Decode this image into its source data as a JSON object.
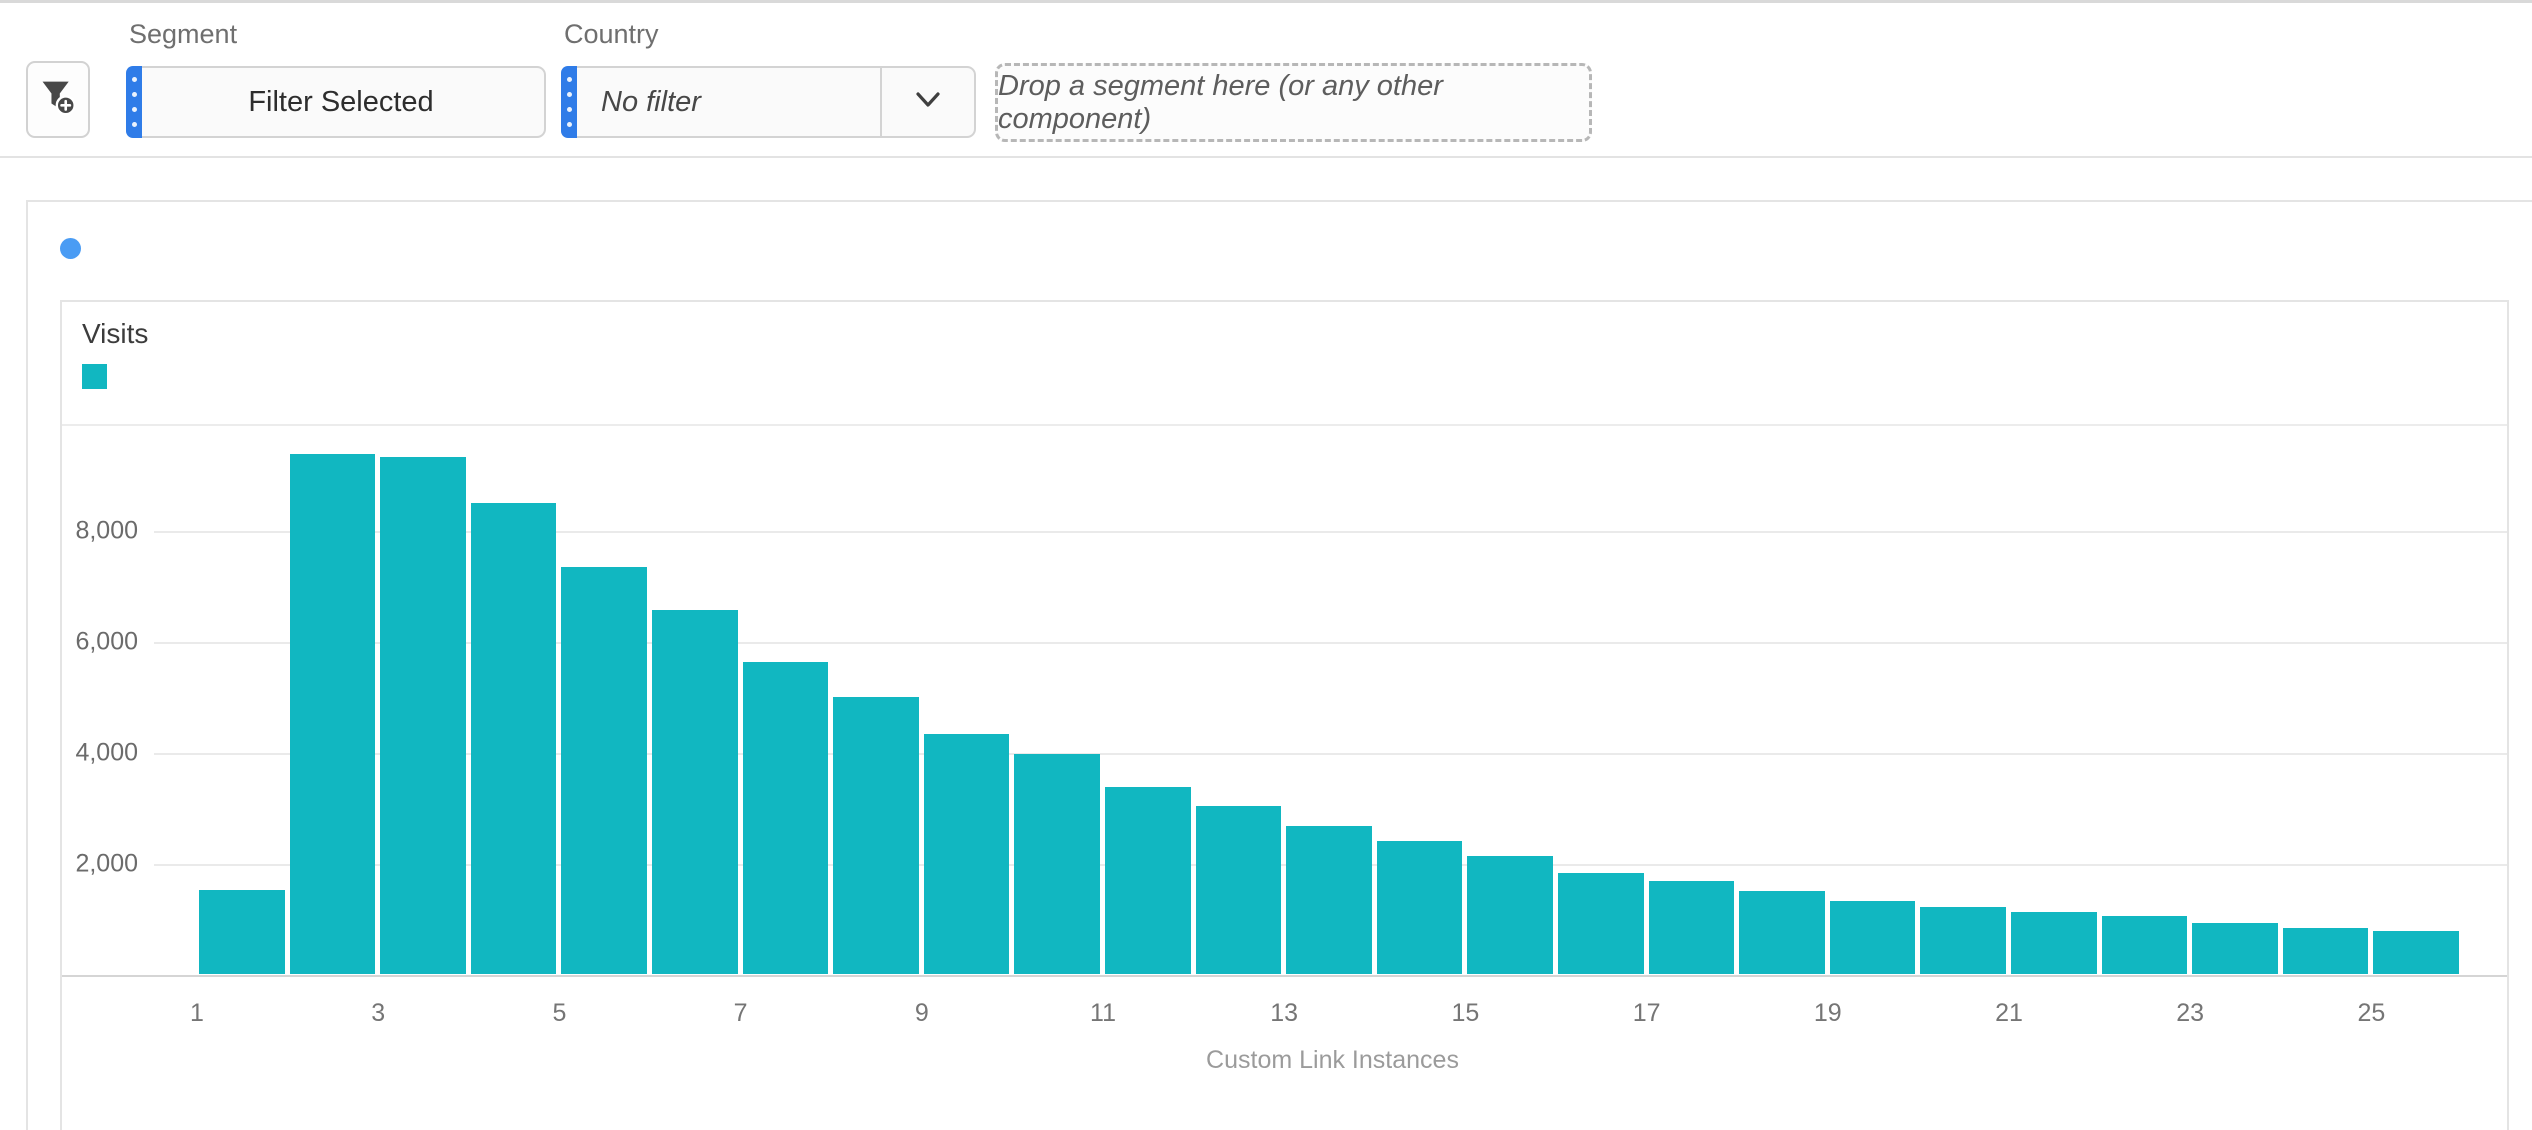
{
  "toolbar": {
    "filter_button": {
      "icon": "add-filter-funnel-icon"
    },
    "segment_field": {
      "label": "Segment",
      "value": "Filter Selected"
    },
    "country_field": {
      "label": "Country",
      "value": "No filter"
    },
    "dropzone_text": "Drop a segment here (or any other component)"
  },
  "panel": {
    "legend_dot_color": "#4a9cf4"
  },
  "colors": {
    "series_teal": "#11b7c1",
    "chip_drag_bar_blue": "#2f7ce8"
  },
  "chart_data": {
    "type": "bar",
    "title": "Visits",
    "xlabel": "Custom Link Instances",
    "ylabel": "",
    "legend": [
      {
        "name": "Visits",
        "color": "#11b7c1"
      }
    ],
    "legend_position": "top-left",
    "grid": true,
    "x": [
      1,
      2,
      3,
      4,
      5,
      6,
      7,
      8,
      9,
      10,
      11,
      12,
      13,
      14,
      15,
      16,
      17,
      18,
      19,
      20,
      21,
      22,
      23,
      24,
      25
    ],
    "values": [
      1530,
      9390,
      9330,
      8500,
      7350,
      6580,
      5640,
      5010,
      4340,
      3980,
      3380,
      3050,
      2690,
      2410,
      2140,
      1840,
      1690,
      1520,
      1340,
      1220,
      1140,
      1060,
      930,
      850,
      800
    ],
    "series_color": "#11b7c1",
    "y_ticks": [
      2000,
      4000,
      6000,
      8000
    ],
    "y_tick_labels": [
      "2,000",
      "4,000",
      "6,000",
      "8,000"
    ],
    "x_tick_values": [
      1,
      3,
      5,
      7,
      9,
      11,
      13,
      15,
      17,
      19,
      21,
      23,
      25
    ],
    "ylim": [
      0,
      9890
    ]
  }
}
